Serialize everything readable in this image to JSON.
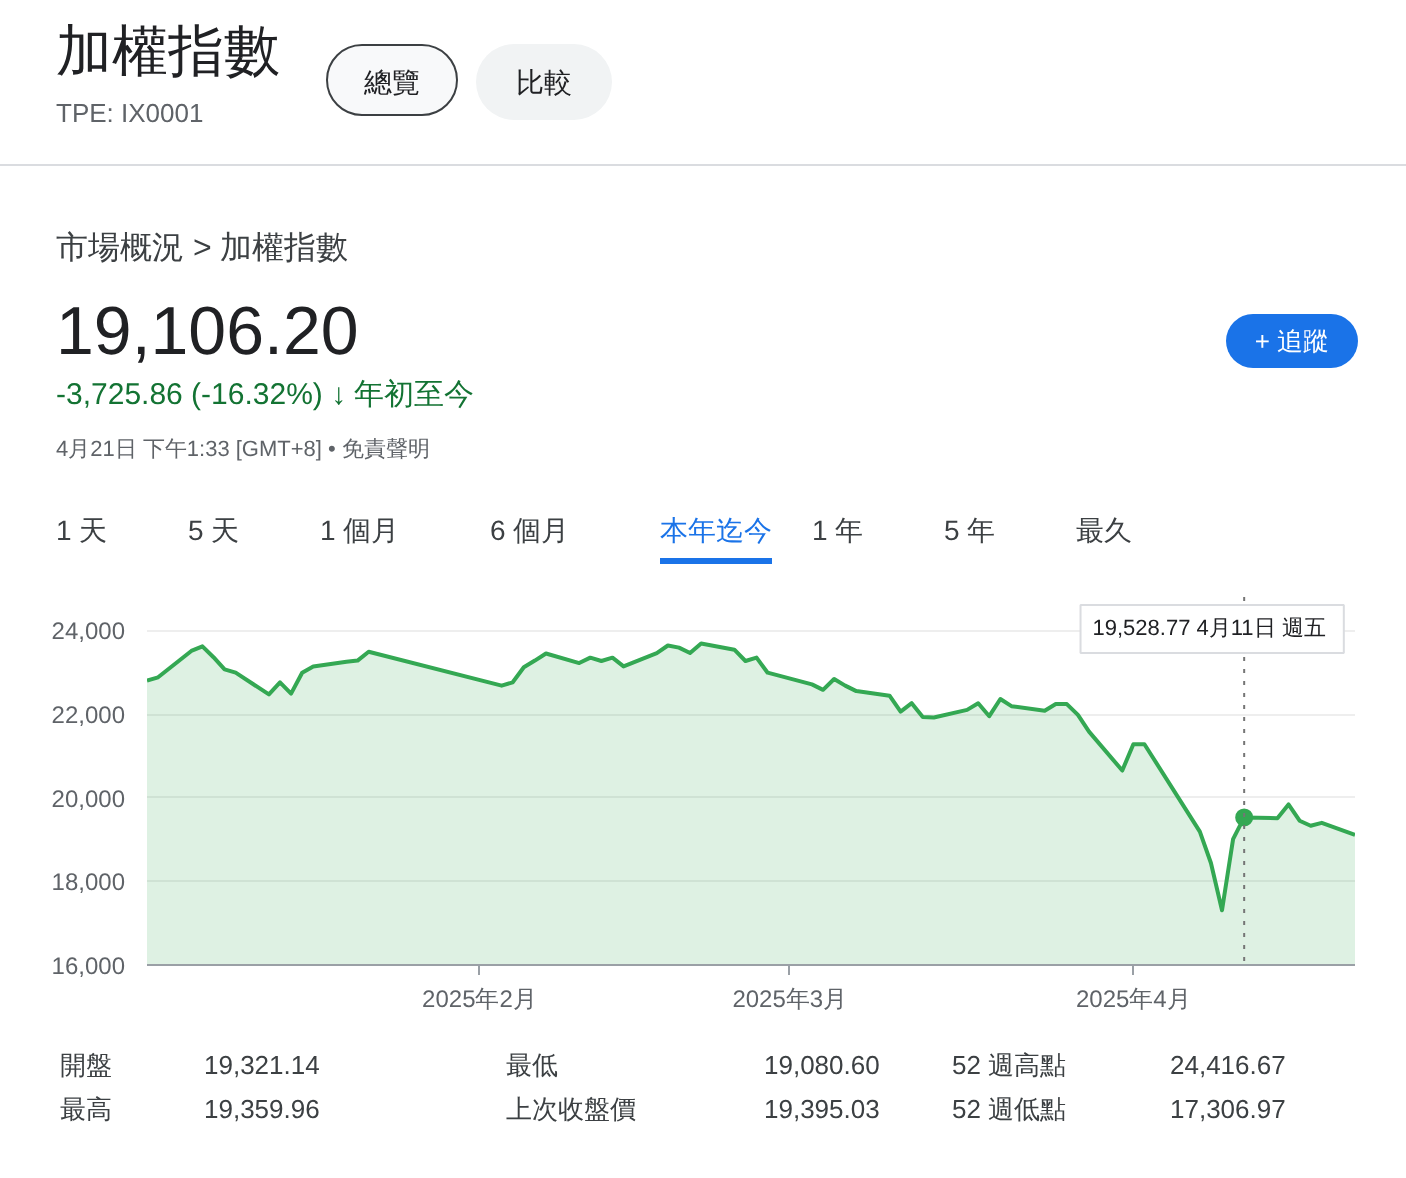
{
  "chart_data": {
    "type": "area",
    "title": "加權指數",
    "subtitle": "TPE: IX0001",
    "annotations": [
      "總覽",
      "比較",
      "市場概況 > 加權指數",
      "19,106.20",
      "-3,725.86 (-16.32%) ↓ 年初至今",
      "4月21日 下午1:33 [GMT+8] • 免責聲明",
      "+ 追蹤",
      "1 天",
      "5 天",
      "1 個月",
      "6 個月",
      "本年迄今",
      "1 年",
      "5 年",
      "最久",
      "開盤",
      "19,321.14",
      "最低",
      "19,080.60",
      "52 週高點",
      "24,416.67",
      "最高",
      "19,359.96",
      "上次收盤價",
      "19,395.03",
      "52 週低點",
      "17,306.97"
    ],
    "x": [
      "2025-01-02",
      "2025-01-03",
      "2025-01-06",
      "2025-01-07",
      "2025-01-08",
      "2025-01-09",
      "2025-01-10",
      "2025-01-13",
      "2025-01-14",
      "2025-01-15",
      "2025-01-16",
      "2025-01-17",
      "2025-01-20",
      "2025-01-21",
      "2025-01-22",
      "2025-02-03",
      "2025-02-04",
      "2025-02-05",
      "2025-02-06",
      "2025-02-07",
      "2025-02-10",
      "2025-02-11",
      "2025-02-12",
      "2025-02-13",
      "2025-02-14",
      "2025-02-17",
      "2025-02-18",
      "2025-02-19",
      "2025-02-20",
      "2025-02-21",
      "2025-02-24",
      "2025-02-25",
      "2025-02-26",
      "2025-02-27",
      "2025-03-03",
      "2025-03-04",
      "2025-03-05",
      "2025-03-06",
      "2025-03-07",
      "2025-03-10",
      "2025-03-11",
      "2025-03-12",
      "2025-03-13",
      "2025-03-14",
      "2025-03-17",
      "2025-03-18",
      "2025-03-19",
      "2025-03-20",
      "2025-03-21",
      "2025-03-24",
      "2025-03-25",
      "2025-03-26",
      "2025-03-27",
      "2025-03-28",
      "2025-03-31",
      "2025-04-01",
      "2025-04-02",
      "2025-04-07",
      "2025-04-08",
      "2025-04-09",
      "2025-04-10",
      "2025-04-11",
      "2025-04-14",
      "2025-04-15",
      "2025-04-16",
      "2025-04-17",
      "2025-04-18",
      "2025-04-21"
    ],
    "series": [
      {
        "color": "#34a853",
        "values": [
          22800,
          22880,
          23510,
          23620,
          23360,
          23070,
          22990,
          22470,
          22760,
          22490,
          22990,
          23140,
          23250,
          23280,
          23490,
          22680,
          22760,
          23120,
          23280,
          23450,
          23220,
          23350,
          23270,
          23350,
          23140,
          23460,
          23640,
          23590,
          23460,
          23690,
          23540,
          23270,
          23350,
          22990,
          22710,
          22580,
          22840,
          22680,
          22550,
          22440,
          22060,
          22260,
          21930,
          21920,
          22100,
          22260,
          21950,
          22360,
          22190,
          22080,
          22240,
          22240,
          21980,
          21580,
          20650,
          21280,
          21280,
          19190,
          18440,
          17310,
          19010,
          19530,
          19510,
          19840,
          19450,
          19330,
          19400,
          19110
        ]
      }
    ],
    "xlim": [
      "2025-01-02",
      "2025-04-21"
    ],
    "xticks": [
      {
        "value": "2025-02-01",
        "label": "2025年2月"
      },
      {
        "value": "2025-03-01",
        "label": "2025年3月"
      },
      {
        "value": "2025-04-01",
        "label": "2025年4月"
      }
    ],
    "ylim": [
      16000,
      24800
    ],
    "yticks": [
      {
        "value": 16000,
        "label": "16,000"
      },
      {
        "value": 18000,
        "label": "18,000"
      },
      {
        "value": 20000,
        "label": "20,000"
      },
      {
        "value": 22000,
        "label": "22,000"
      },
      {
        "value": 24000,
        "label": "24,000"
      }
    ],
    "grid": "y",
    "ref_lines": [
      {
        "axis": "x",
        "value": "2025-04-11",
        "label": "19,528.77  4月11日 週五",
        "color": "#757575",
        "line_style": "dotted"
      }
    ]
  }
}
